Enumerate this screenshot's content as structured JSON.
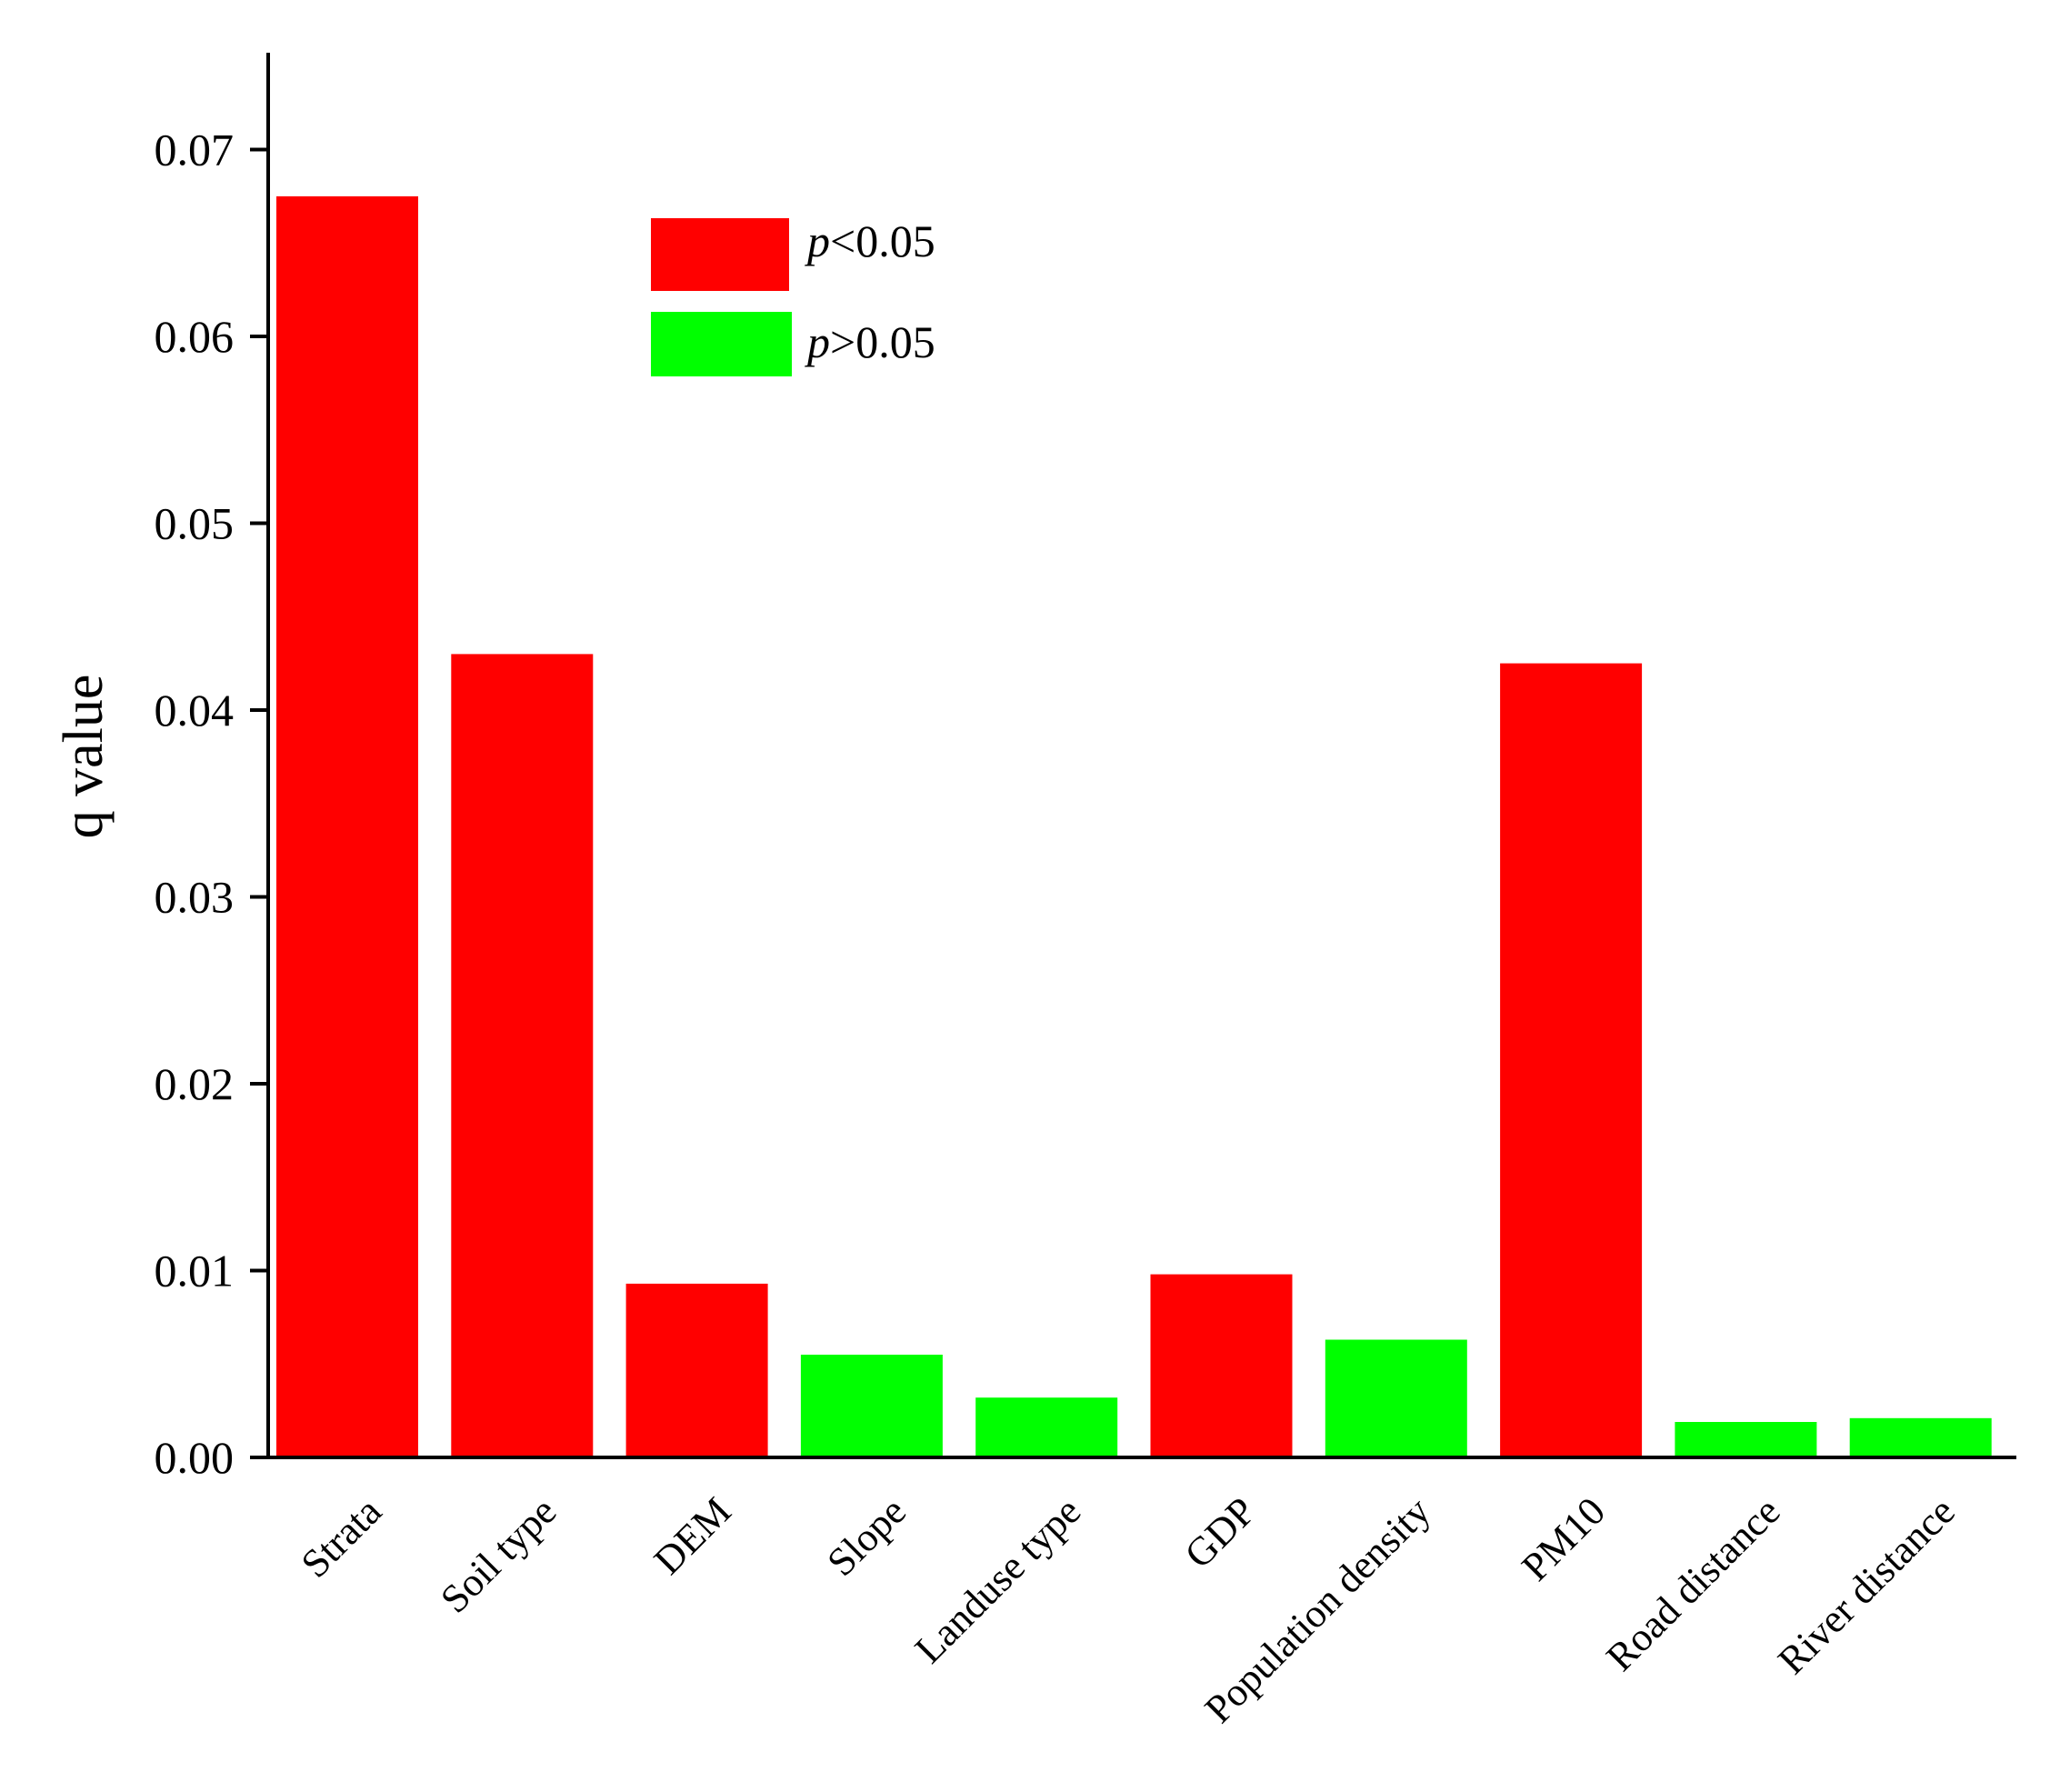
{
  "chart_data": {
    "type": "bar",
    "title": "",
    "xlabel": "",
    "ylabel": "q value",
    "ylim": [
      0,
      0.075
    ],
    "yticks": [
      "0.00",
      "0.01",
      "0.02",
      "0.03",
      "0.04",
      "0.05",
      "0.06",
      "0.07"
    ],
    "grid": false,
    "legend_position": "top-left",
    "categories": [
      "Strata",
      "Soil type",
      "DEM",
      "Slope",
      "Landuse type",
      "GDP",
      "Population density",
      "PM10",
      "Road distance",
      "River distance"
    ],
    "values": [
      0.0675,
      0.043,
      0.0093,
      0.0055,
      0.0032,
      0.0098,
      0.0063,
      0.0425,
      0.0019,
      0.0021
    ],
    "significance": [
      "p<0.05",
      "p<0.05",
      "p<0.05",
      "p>0.05",
      "p>0.05",
      "p<0.05",
      "p>0.05",
      "p<0.05",
      "p>0.05",
      "p>0.05"
    ],
    "legend": [
      {
        "key": "p<0.05",
        "italic_part": "p",
        "text_part": "<0.05",
        "color": "#ff0000"
      },
      {
        "key": "p>0.05",
        "italic_part": "p",
        "text_part": ">0.05",
        "color": "#00ff00"
      }
    ]
  }
}
